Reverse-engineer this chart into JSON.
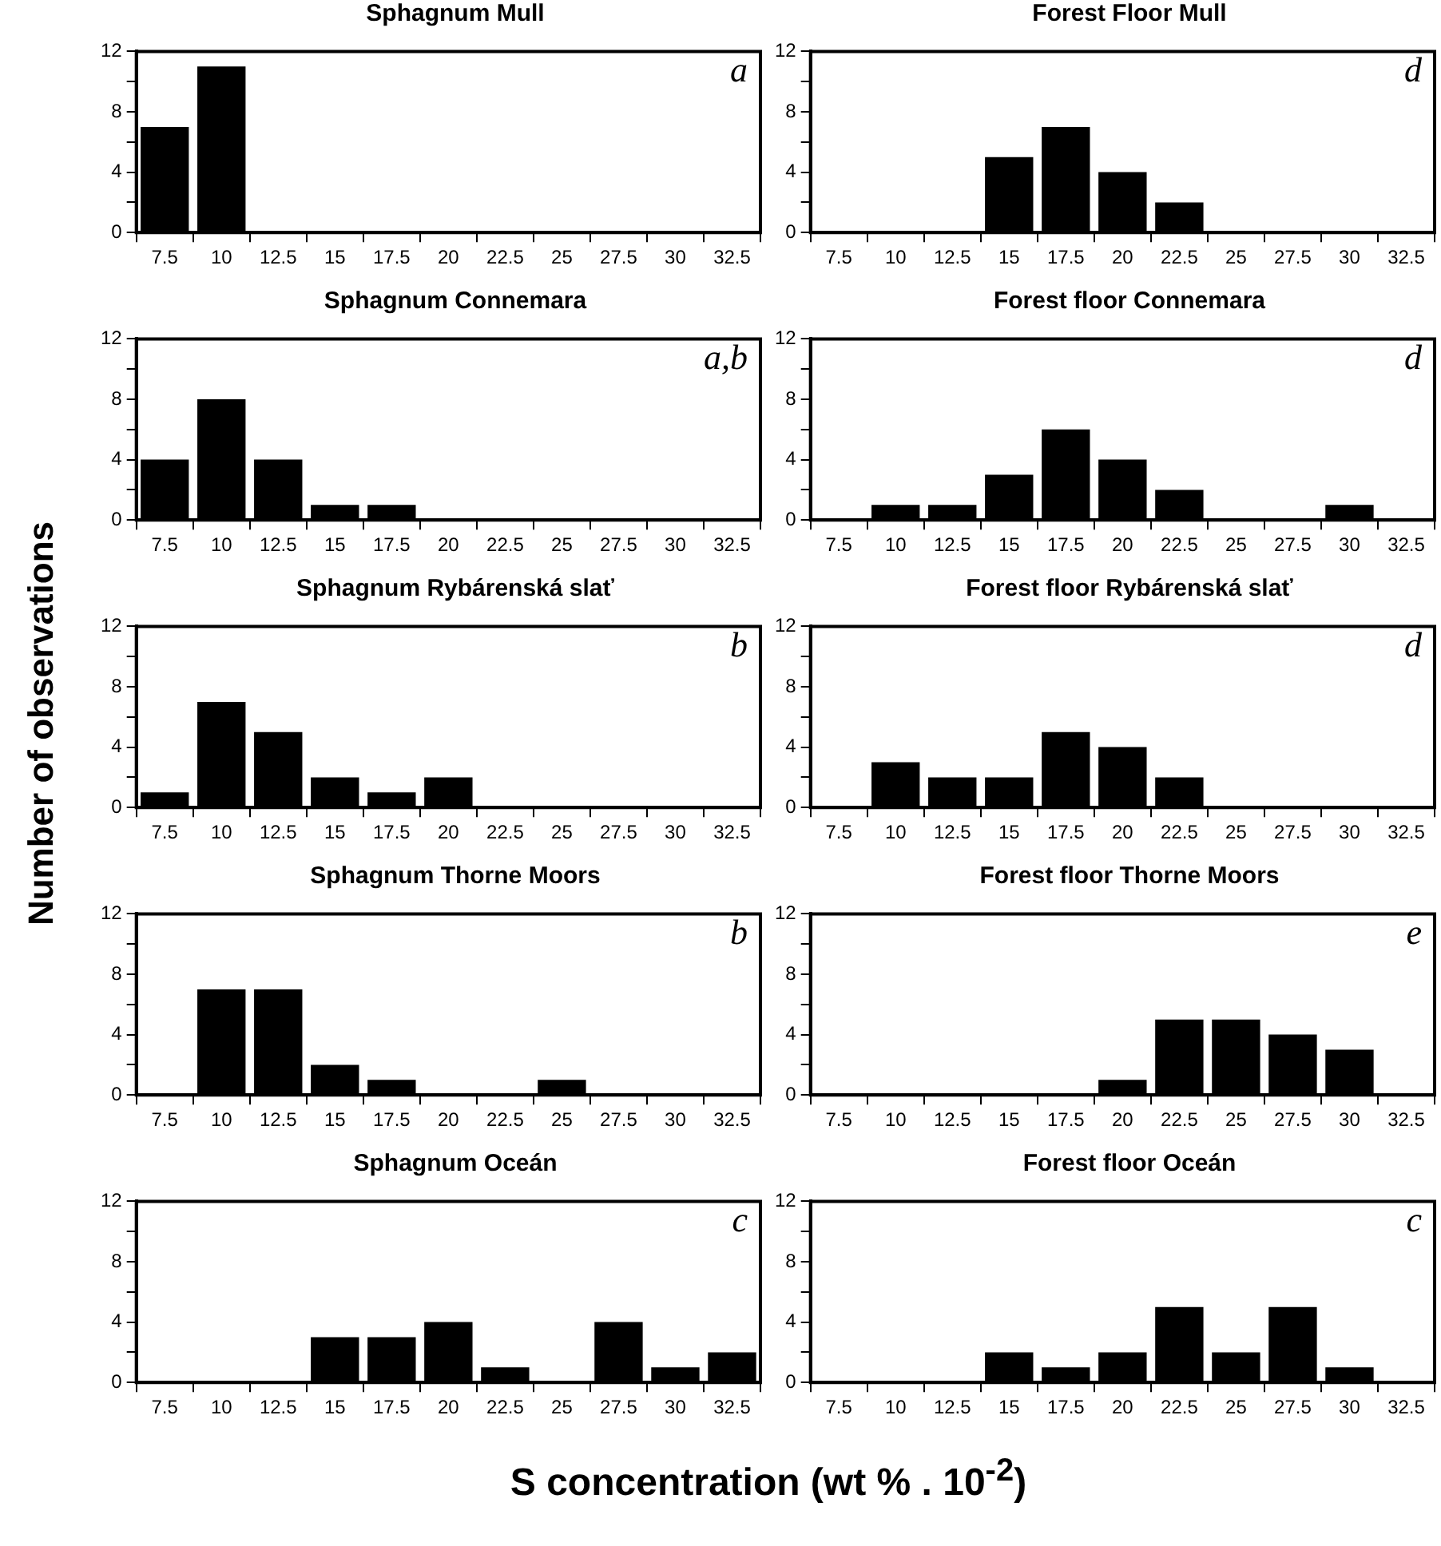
{
  "chart_data": [
    {
      "type": "bar",
      "title": "Sphagnum Mull",
      "categories": [
        "7.5",
        "10",
        "12.5",
        "15",
        "17.5",
        "20",
        "22.5",
        "25",
        "27.5",
        "30",
        "32.5"
      ],
      "values": [
        7,
        11,
        0,
        0,
        0,
        0,
        0,
        0,
        0,
        0,
        0
      ],
      "color": "#000000",
      "ylim": [
        0,
        12
      ],
      "yticks": [
        0,
        {
          "value": 2,
          "label": null
        },
        4,
        {
          "value": 6,
          "label": null
        },
        8,
        {
          "value": 10,
          "label": null
        },
        12
      ],
      "annotations": [
        "a"
      ]
    },
    {
      "type": "bar",
      "title": "Forest Floor Mull",
      "categories": [
        "7.5",
        "10",
        "12.5",
        "15",
        "17.5",
        "20",
        "22.5",
        "25",
        "27.5",
        "30",
        "32.5"
      ],
      "values": [
        0,
        0,
        0,
        5,
        7,
        4,
        2,
        0,
        0,
        0,
        0
      ],
      "color": "#000000",
      "ylim": [
        0,
        12
      ],
      "yticks": [
        0,
        {
          "value": 2,
          "label": null
        },
        4,
        {
          "value": 6,
          "label": null
        },
        8,
        {
          "value": 10,
          "label": null
        },
        12
      ],
      "annotations": [
        "d"
      ]
    },
    {
      "type": "bar",
      "title": "Sphagnum Connemara",
      "categories": [
        "7.5",
        "10",
        "12.5",
        "15",
        "17.5",
        "20",
        "22.5",
        "25",
        "27.5",
        "30",
        "32.5"
      ],
      "values": [
        4,
        8,
        4,
        1,
        1,
        0,
        0,
        0,
        0,
        0,
        0
      ],
      "color": "#000000",
      "ylim": [
        0,
        12
      ],
      "yticks": [
        0,
        {
          "value": 2,
          "label": null
        },
        4,
        {
          "value": 6,
          "label": null
        },
        8,
        {
          "value": 10,
          "label": null
        },
        12
      ],
      "annotations": [
        "a,b"
      ]
    },
    {
      "type": "bar",
      "title": "Forest floor Connemara",
      "categories": [
        "7.5",
        "10",
        "12.5",
        "15",
        "17.5",
        "20",
        "22.5",
        "25",
        "27.5",
        "30",
        "32.5"
      ],
      "values": [
        0,
        1,
        1,
        3,
        6,
        4,
        2,
        0,
        0,
        1,
        0
      ],
      "color": "#000000",
      "ylim": [
        0,
        12
      ],
      "yticks": [
        0,
        {
          "value": 2,
          "label": null
        },
        4,
        {
          "value": 6,
          "label": null
        },
        8,
        {
          "value": 10,
          "label": null
        },
        12
      ],
      "annotations": [
        "d"
      ]
    },
    {
      "type": "bar",
      "title": "Sphagnum Rybárenská slať",
      "ylabel": "Number of observations",
      "categories": [
        "7.5",
        "10",
        "12.5",
        "15",
        "17.5",
        "20",
        "22.5",
        "25",
        "27.5",
        "30",
        "32.5"
      ],
      "values": [
        1,
        7,
        5,
        2,
        1,
        2,
        0,
        0,
        0,
        0,
        0
      ],
      "color": "#000000",
      "ylim": [
        0,
        12
      ],
      "yticks": [
        0,
        {
          "value": 2,
          "label": null
        },
        4,
        {
          "value": 6,
          "label": null
        },
        8,
        {
          "value": 10,
          "label": null
        },
        12
      ],
      "annotations": [
        "b"
      ]
    },
    {
      "type": "bar",
      "title": "Forest floor Rybárenská slať",
      "categories": [
        "7.5",
        "10",
        "12.5",
        "15",
        "17.5",
        "20",
        "22.5",
        "25",
        "27.5",
        "30",
        "32.5"
      ],
      "values": [
        0,
        3,
        2,
        2,
        5,
        4,
        2,
        0,
        0,
        0,
        0
      ],
      "color": "#000000",
      "ylim": [
        0,
        12
      ],
      "yticks": [
        0,
        {
          "value": 2,
          "label": null
        },
        4,
        {
          "value": 6,
          "label": null
        },
        8,
        {
          "value": 10,
          "label": null
        },
        12
      ],
      "annotations": [
        "d"
      ]
    },
    {
      "type": "bar",
      "title": "Sphagnum Thorne Moors",
      "categories": [
        "7.5",
        "10",
        "12.5",
        "15",
        "17.5",
        "20",
        "22.5",
        "25",
        "27.5",
        "30",
        "32.5"
      ],
      "values": [
        0,
        7,
        7,
        2,
        1,
        0,
        0,
        1,
        0,
        0,
        0
      ],
      "color": "#000000",
      "ylim": [
        0,
        12
      ],
      "yticks": [
        0,
        {
          "value": 2,
          "label": null
        },
        4,
        {
          "value": 6,
          "label": null
        },
        8,
        {
          "value": 10,
          "label": null
        },
        12
      ],
      "annotations": [
        "b"
      ]
    },
    {
      "type": "bar",
      "title": "Forest floor Thorne Moors",
      "categories": [
        "7.5",
        "10",
        "12.5",
        "15",
        "17.5",
        "20",
        "22.5",
        "25",
        "27.5",
        "30",
        "32.5"
      ],
      "values": [
        0,
        0,
        0,
        0,
        0,
        1,
        5,
        5,
        4,
        3,
        0
      ],
      "color": "#000000",
      "ylim": [
        0,
        12
      ],
      "yticks": [
        0,
        {
          "value": 2,
          "label": null
        },
        4,
        {
          "value": 6,
          "label": null
        },
        8,
        {
          "value": 10,
          "label": null
        },
        12
      ],
      "annotations": [
        "e"
      ]
    },
    {
      "type": "bar",
      "title": "Sphagnum Oceán",
      "xlabel": "S concentration (wt % . 10$^{-2}$)",
      "categories": [
        "7.5",
        "10",
        "12.5",
        "15",
        "17.5",
        "20",
        "22.5",
        "25",
        "27.5",
        "30",
        "32.5"
      ],
      "values": [
        0,
        0,
        0,
        3,
        3,
        4,
        1,
        0,
        4,
        1,
        2
      ],
      "color": "#000000",
      "ylim": [
        0,
        12
      ],
      "yticks": [
        0,
        {
          "value": 2,
          "label": null
        },
        4,
        {
          "value": 6,
          "label": null
        },
        8,
        {
          "value": 10,
          "label": null
        },
        12
      ],
      "annotations": [
        "c"
      ]
    },
    {
      "type": "bar",
      "title": "Forest floor Oceán",
      "categories": [
        "7.5",
        "10",
        "12.5",
        "15",
        "17.5",
        "20",
        "22.5",
        "25",
        "27.5",
        "30",
        "32.5"
      ],
      "values": [
        0,
        0,
        0,
        2,
        1,
        2,
        5,
        2,
        5,
        1,
        0
      ],
      "color": "#000000",
      "ylim": [
        0,
        12
      ],
      "yticks": [
        0,
        {
          "value": 2,
          "label": null
        },
        4,
        {
          "value": 6,
          "label": null
        },
        8,
        {
          "value": 10,
          "label": null
        },
        12
      ],
      "annotations": [
        "c"
      ]
    }
  ]
}
